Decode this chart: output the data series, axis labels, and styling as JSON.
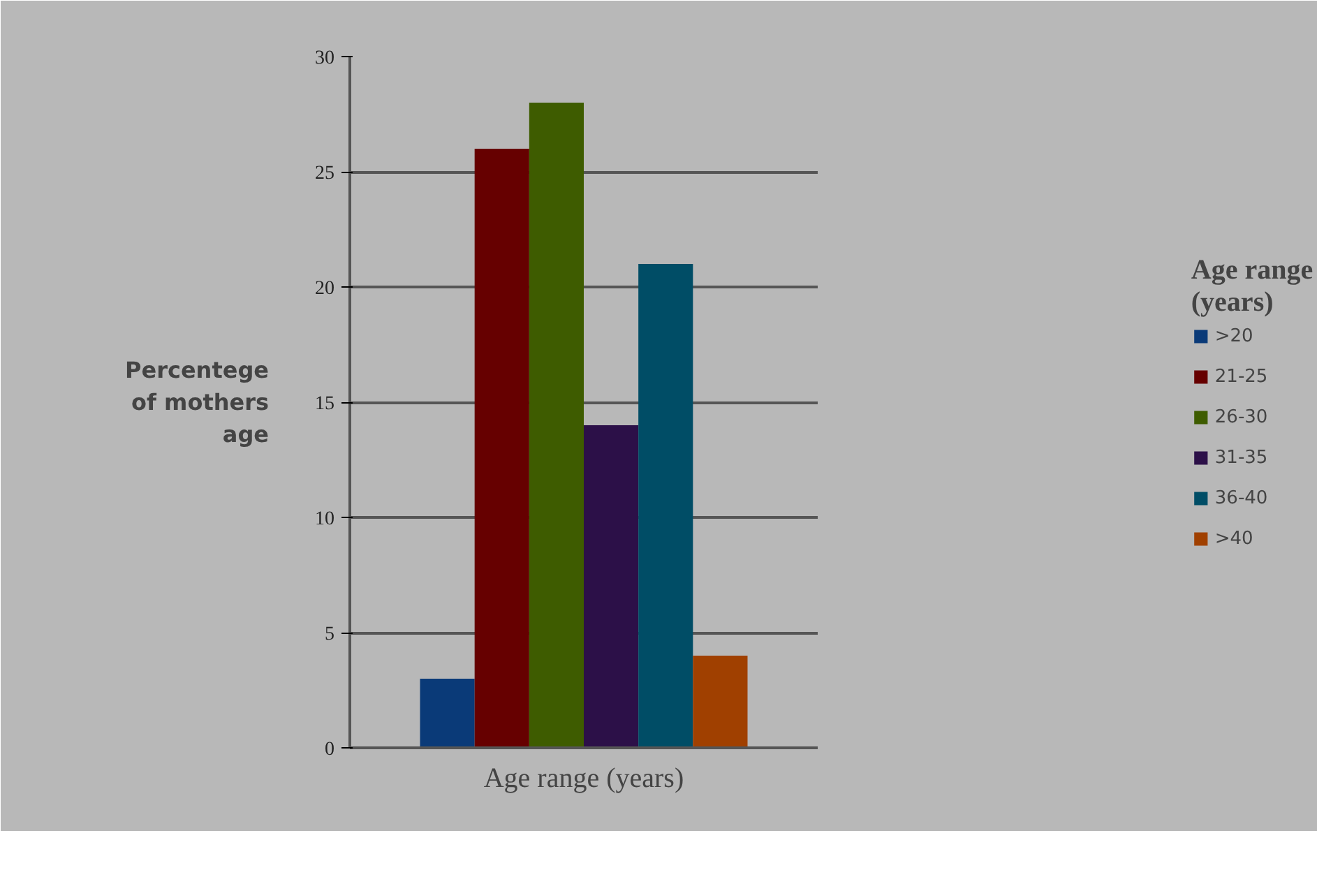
{
  "chart_data": {
    "type": "bar",
    "xlabel": "Age range (years)",
    "ylabel": "Percentege of mothers age",
    "legend_title": "Age range (years)",
    "categories": [
      null
    ],
    "series": [
      {
        "name": ">20",
        "color": "#0a3a78",
        "values": [
          3
        ]
      },
      {
        "name": "21-25",
        "color": "#660000",
        "values": [
          26
        ]
      },
      {
        "name": "26-30",
        "color": "#3e5c00",
        "values": [
          28
        ]
      },
      {
        "name": "31-35",
        "color": "#2c1048",
        "values": [
          14
        ]
      },
      {
        "name": "36-40",
        "color": "#004d66",
        "values": [
          21
        ]
      },
      {
        "name": ">40",
        "color": "#a04000",
        "values": [
          4
        ]
      }
    ],
    "ylim": [
      0,
      30
    ],
    "yticks": [
      0,
      5,
      10,
      15,
      20,
      25,
      30
    ],
    "grid": "y",
    "legend": "right"
  }
}
